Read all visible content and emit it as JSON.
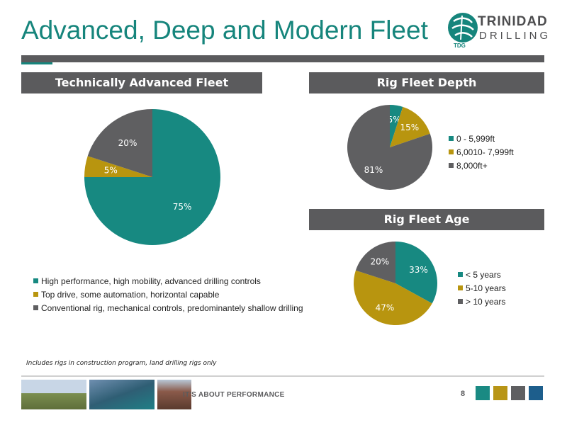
{
  "slide": {
    "title": "Advanced, Deep and Modern Fleet",
    "footnote": "Includes rigs in construction program, land drilling rigs only",
    "tagline": "IT'S ABOUT PERFORMANCE",
    "page_number": "8",
    "footer_square_colors": [
      "#1a8a83",
      "#b89516",
      "#5f5f61",
      "#1d5e8c"
    ]
  },
  "logo": {
    "line1": "TRINIDAD",
    "line2": "DRILLING",
    "tag": "TDG"
  },
  "colors": {
    "teal": "#178981",
    "gold": "#b8950f",
    "gray": "#5f5f61"
  },
  "chart_data": [
    {
      "type": "pie",
      "title": "Technically Advanced Fleet",
      "categories": [
        "High performance, high mobility, advanced drilling controls",
        "Top drive, some automation, horizontal capable",
        "Conventional rig, mechanical controls, predominantely shallow drilling"
      ],
      "values": [
        75,
        5,
        20
      ],
      "labels": [
        "75%",
        "5%",
        "20%"
      ],
      "colors": [
        "#178981",
        "#b8950f",
        "#5f5f61"
      ],
      "legend_position": "bottom"
    },
    {
      "type": "pie",
      "title": "Rig Fleet Depth",
      "categories": [
        "0 - 5,999ft",
        "6,0010- 7,999ft",
        "8,000ft+"
      ],
      "values": [
        5,
        15,
        81
      ],
      "labels": [
        "5%",
        "15%",
        "81%"
      ],
      "colors": [
        "#178981",
        "#b8950f",
        "#5f5f61"
      ],
      "legend_position": "right"
    },
    {
      "type": "pie",
      "title": "Rig Fleet Age",
      "categories": [
        "< 5 years",
        "5-10 years",
        "> 10 years"
      ],
      "values": [
        33,
        47,
        20
      ],
      "labels": [
        "33%",
        "47%",
        "20%"
      ],
      "colors": [
        "#178981",
        "#b8950f",
        "#5f5f61"
      ],
      "legend_position": "right"
    }
  ]
}
